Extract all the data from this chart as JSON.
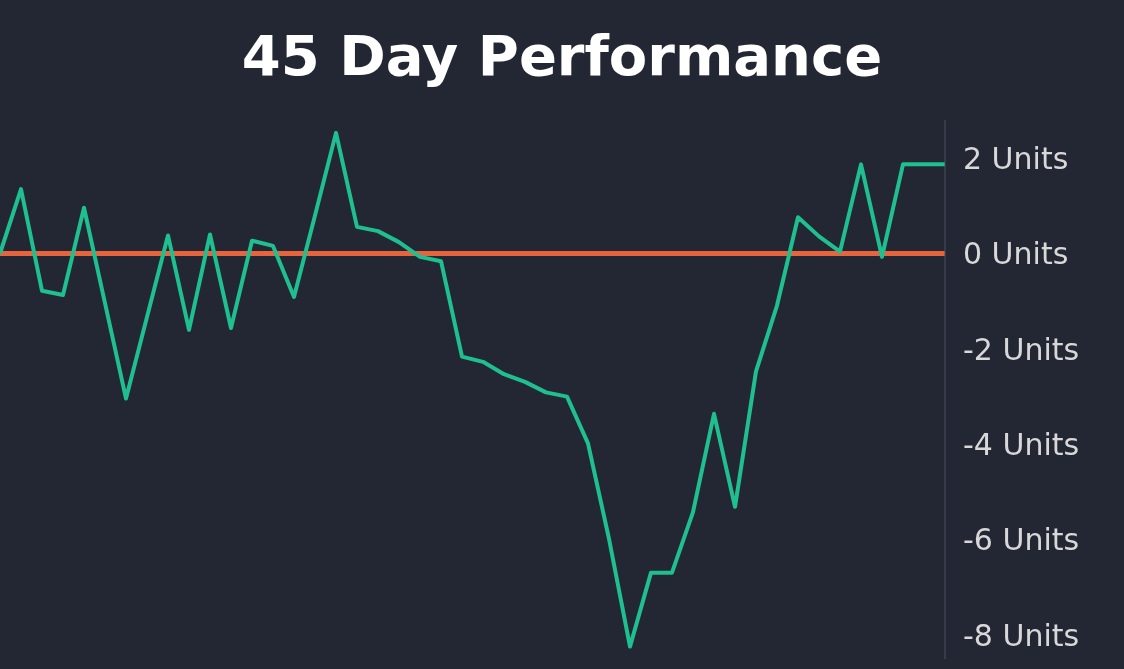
{
  "chart_data": {
    "type": "line",
    "title": "45 Day Performance",
    "categories": [
      null,
      null,
      null,
      null,
      null,
      null,
      null,
      null,
      null,
      null,
      null,
      null,
      null,
      null,
      null,
      null,
      null,
      null,
      null,
      null,
      null,
      null,
      null,
      null,
      null,
      null,
      null,
      null,
      null,
      null,
      null,
      null,
      null,
      null,
      null,
      null,
      null,
      null,
      null,
      null,
      null,
      null,
      null,
      null,
      null,
      null
    ],
    "series": [
      {
        "color": "#1fbf8f",
        "values": [
          0,
          1.35,
          -0.78,
          -0.87,
          0.96,
          -1.04,
          -3.04,
          -1.33,
          0.38,
          -1.6,
          0.4,
          -1.56,
          0.27,
          0.16,
          -0.91,
          0.8,
          2.53,
          0.56,
          0.47,
          0.24,
          -0.07,
          -0.16,
          -2.16,
          -2.27,
          -2.53,
          -2.69,
          -2.91,
          -3.0,
          -3.98,
          -5.98,
          -8.24,
          -6.69,
          -6.69,
          -5.42,
          -3.36,
          -5.31,
          -2.47,
          -1.09,
          0.76,
          0.36,
          0.04,
          1.87,
          -0.07,
          1.87,
          1.87,
          1.87
        ]
      }
    ],
    "yticks": [
      {
        "value": 2,
        "label": "2 Units"
      },
      {
        "value": 0,
        "label": "0 Units"
      },
      {
        "value": -2,
        "label": "-2 Units"
      },
      {
        "value": -4,
        "label": "-4 Units"
      },
      {
        "value": -6,
        "label": "-6 Units"
      },
      {
        "value": -8,
        "label": "-8 Units"
      }
    ],
    "ylim": [
      -8.5,
      2.8
    ],
    "ref_lines": [
      {
        "axis": "y",
        "value": 0,
        "color": "#e8643c"
      }
    ],
    "tick_labels": "y",
    "grid": false,
    "legend": false,
    "marker": "none",
    "line_style": "solid"
  }
}
